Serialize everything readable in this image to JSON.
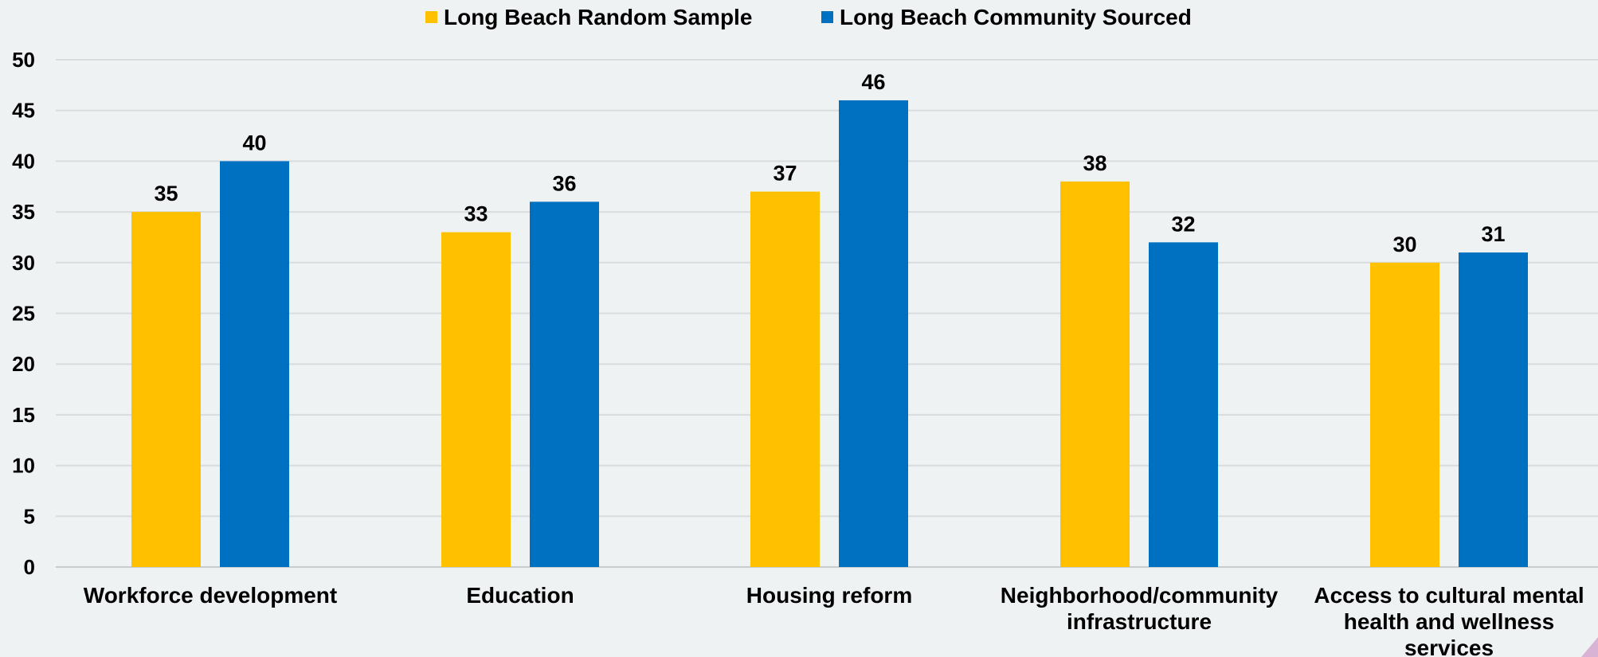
{
  "chart_data": {
    "type": "bar",
    "categories": [
      [
        "Workforce development"
      ],
      [
        "Education"
      ],
      [
        "Housing reform"
      ],
      [
        "Neighborhood/community",
        "infrastructure"
      ],
      [
        "Access to cultural mental",
        "health and wellness",
        "services"
      ]
    ],
    "series": [
      {
        "name": "Long Beach Random Sample",
        "color": "#ffc000",
        "values": [
          35,
          33,
          37,
          38,
          30
        ]
      },
      {
        "name": "Long Beach Community Sourced",
        "color": "#0070c0",
        "values": [
          40,
          36,
          46,
          32,
          31
        ]
      }
    ],
    "ylim": [
      0,
      50
    ],
    "yticks": [
      0,
      5,
      10,
      15,
      20,
      25,
      30,
      35,
      40,
      45,
      50
    ],
    "grid": true,
    "legend": "top-center",
    "show_data_labels": true
  }
}
